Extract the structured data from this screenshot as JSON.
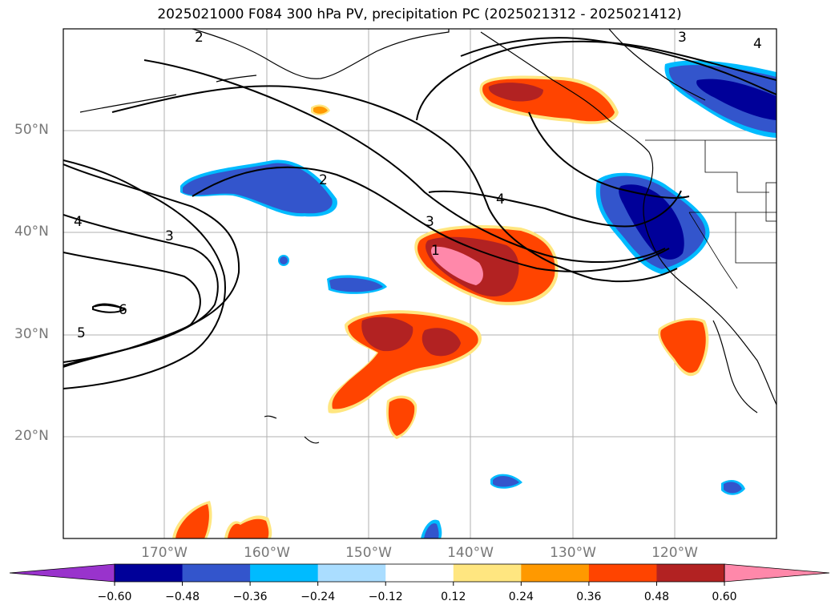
{
  "title": "2025021000 F084 300 hPa PV, precipitation PC (2025021312 - 2025021412)",
  "latitude_labels": [
    "50°N",
    "40°N",
    "30°N",
    "20°N"
  ],
  "longitude_labels": [
    "170°W",
    "160°W",
    "150°W",
    "140°W",
    "130°W",
    "120°W"
  ],
  "contour_labels": [
    "1",
    "2",
    "3",
    "4",
    "5",
    "6",
    "2",
    "3",
    "4",
    "3",
    "4"
  ],
  "colorbar": {
    "ticks": [
      "−0.60",
      "−0.48",
      "−0.36",
      "−0.24",
      "−0.12",
      "0.12",
      "0.24",
      "0.36",
      "0.48",
      "0.60"
    ],
    "colors": [
      "#9933cc",
      "#000099",
      "#3355cc",
      "#00bbff",
      "#aaddff",
      "#ffffff",
      "#ffe680",
      "#ff9900",
      "#ff4400",
      "#b22222",
      "#ff88aa",
      "#ff88aa"
    ]
  },
  "layers": {
    "negative_colors": [
      "#aaddff",
      "#00bbff",
      "#3355cc",
      "#000099"
    ],
    "positive_colors": [
      "#ffe680",
      "#ff9900",
      "#ff4400",
      "#b22222",
      "#ff88aa"
    ]
  }
}
